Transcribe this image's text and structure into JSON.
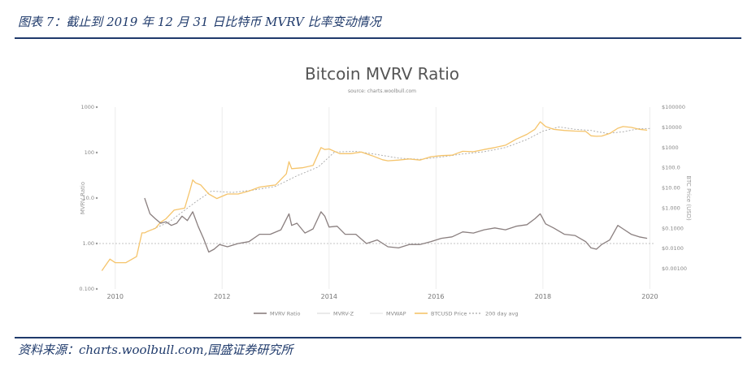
{
  "figure_title": "图表 7：截止到 2019 年 12 月 31 日比特币 MVRV 比率变动情况",
  "source_note": "资料来源：charts.woolbull.com,国盛证券研究所",
  "chart_data": {
    "type": "line",
    "title": "Bitcoin MVRV Ratio",
    "subtitle": "source: charts.woolbull.com",
    "xlabel": "",
    "ylabel": "MVRV Ratio",
    "y2label": "BTC Price (USD)",
    "xlim": [
      2009.7,
      2020.1
    ],
    "ylim": [
      0.1,
      1000
    ],
    "y2lim": [
      0.0001,
      100000
    ],
    "yscale": "log",
    "y_ticks": [
      "0.100",
      "1.00",
      "10.0",
      "100",
      "1000"
    ],
    "y2_ticks": [
      "$0.00100",
      "$0.0100",
      "$0.1000",
      "$1.000",
      "$10.00",
      "$100.0",
      "$1000",
      "$10000",
      "$100000"
    ],
    "x_ticks": [
      "2010",
      "2012",
      "2014",
      "2016",
      "2018",
      "2020"
    ],
    "reference_line": {
      "y": 1.0
    },
    "legend": [
      "MVRV Ratio",
      "MVRV-Z",
      "MVWAP",
      "BTCUSD Price",
      "200 day avg"
    ],
    "legend_position": "bottom",
    "series": [
      {
        "name": "MVRV Ratio",
        "axis": "left",
        "color": "#8a7f7f",
        "x": [
          2010.55,
          2010.65,
          2010.75,
          2010.85,
          2010.95,
          2011.05,
          2011.15,
          2011.25,
          2011.35,
          2011.45,
          2011.55,
          2011.65,
          2011.75,
          2011.85,
          2011.95,
          2012.1,
          2012.3,
          2012.5,
          2012.7,
          2012.9,
          2013.1,
          2013.25,
          2013.3,
          2013.4,
          2013.55,
          2013.7,
          2013.85,
          2013.92,
          2014.0,
          2014.15,
          2014.3,
          2014.5,
          2014.7,
          2014.9,
          2015.1,
          2015.3,
          2015.5,
          2015.7,
          2015.9,
          2016.1,
          2016.3,
          2016.5,
          2016.7,
          2016.9,
          2017.1,
          2017.3,
          2017.5,
          2017.7,
          2017.85,
          2017.95,
          2018.05,
          2018.2,
          2018.4,
          2018.6,
          2018.8,
          2018.9,
          2019.0,
          2019.1,
          2019.25,
          2019.4,
          2019.5,
          2019.65,
          2019.8,
          2019.95
        ],
        "values": [
          10,
          4.5,
          3.5,
          2.8,
          3.0,
          2.5,
          2.8,
          4.0,
          3.2,
          5.0,
          2.4,
          1.3,
          0.65,
          0.75,
          0.95,
          0.85,
          1.0,
          1.1,
          1.6,
          1.6,
          2.0,
          4.5,
          2.5,
          2.8,
          1.7,
          2.1,
          5.0,
          4.0,
          2.3,
          2.4,
          1.6,
          1.6,
          1.0,
          1.2,
          0.85,
          0.8,
          0.95,
          0.95,
          1.1,
          1.3,
          1.4,
          1.8,
          1.7,
          2.0,
          2.2,
          2.0,
          2.4,
          2.6,
          3.5,
          4.5,
          2.7,
          2.2,
          1.6,
          1.5,
          1.1,
          0.8,
          0.75,
          0.95,
          1.2,
          2.5,
          2.1,
          1.6,
          1.4,
          1.3
        ]
      },
      {
        "name": "BTCUSD Price",
        "axis": "right",
        "color": "#f5c46b",
        "x": [
          2009.75,
          2009.9,
          2010.0,
          2010.2,
          2010.4,
          2010.5,
          2010.55,
          2010.6,
          2010.75,
          2010.85,
          2010.95,
          2011.1,
          2011.2,
          2011.3,
          2011.4,
          2011.45,
          2011.5,
          2011.6,
          2011.75,
          2011.9,
          2012.1,
          2012.3,
          2012.5,
          2012.7,
          2012.9,
          2013.0,
          2013.2,
          2013.25,
          2013.3,
          2013.5,
          2013.7,
          2013.85,
          2013.92,
          2014.0,
          2014.2,
          2014.4,
          2014.6,
          2014.8,
          2015.0,
          2015.1,
          2015.3,
          2015.5,
          2015.7,
          2015.9,
          2016.1,
          2016.3,
          2016.5,
          2016.7,
          2016.9,
          2017.1,
          2017.3,
          2017.5,
          2017.7,
          2017.85,
          2017.95,
          2018.05,
          2018.2,
          2018.4,
          2018.6,
          2018.8,
          2018.9,
          2019.0,
          2019.1,
          2019.25,
          2019.4,
          2019.5,
          2019.65,
          2019.8,
          2019.95
        ],
        "values": [
          0.0008,
          0.003,
          0.002,
          0.002,
          0.004,
          0.06,
          0.06,
          0.07,
          0.1,
          0.2,
          0.3,
          0.8,
          0.9,
          1.0,
          8,
          25,
          18,
          14,
          5,
          3,
          5,
          5,
          7,
          11,
          13,
          14,
          50,
          200,
          90,
          100,
          130,
          1000,
          800,
          850,
          500,
          500,
          600,
          400,
          250,
          220,
          240,
          270,
          240,
          350,
          400,
          420,
          650,
          620,
          800,
          1000,
          1300,
          2600,
          4500,
          8000,
          19000,
          11000,
          8000,
          7000,
          6500,
          6300,
          3800,
          3600,
          3700,
          5000,
          9000,
          11000,
          10000,
          8000,
          7200
        ]
      },
      {
        "name": "200 day avg",
        "axis": "right",
        "color": "#a8a8a8",
        "dashed": true,
        "x": [
          2010.6,
          2011.0,
          2011.5,
          2011.8,
          2012.2,
          2012.6,
          2013.0,
          2013.4,
          2013.8,
          2014.1,
          2014.5,
          2014.9,
          2015.3,
          2015.7,
          2016.1,
          2016.5,
          2016.9,
          2017.3,
          2017.7,
          2018.0,
          2018.3,
          2018.6,
          2018.9,
          2019.2,
          2019.5,
          2019.8,
          2020.0
        ],
        "values": [
          0.07,
          0.2,
          2,
          7,
          6,
          8,
          12,
          40,
          110,
          600,
          650,
          450,
          300,
          260,
          340,
          480,
          620,
          1000,
          2500,
          6500,
          10500,
          8000,
          7000,
          5000,
          6000,
          8600,
          8800
        ]
      }
    ]
  }
}
